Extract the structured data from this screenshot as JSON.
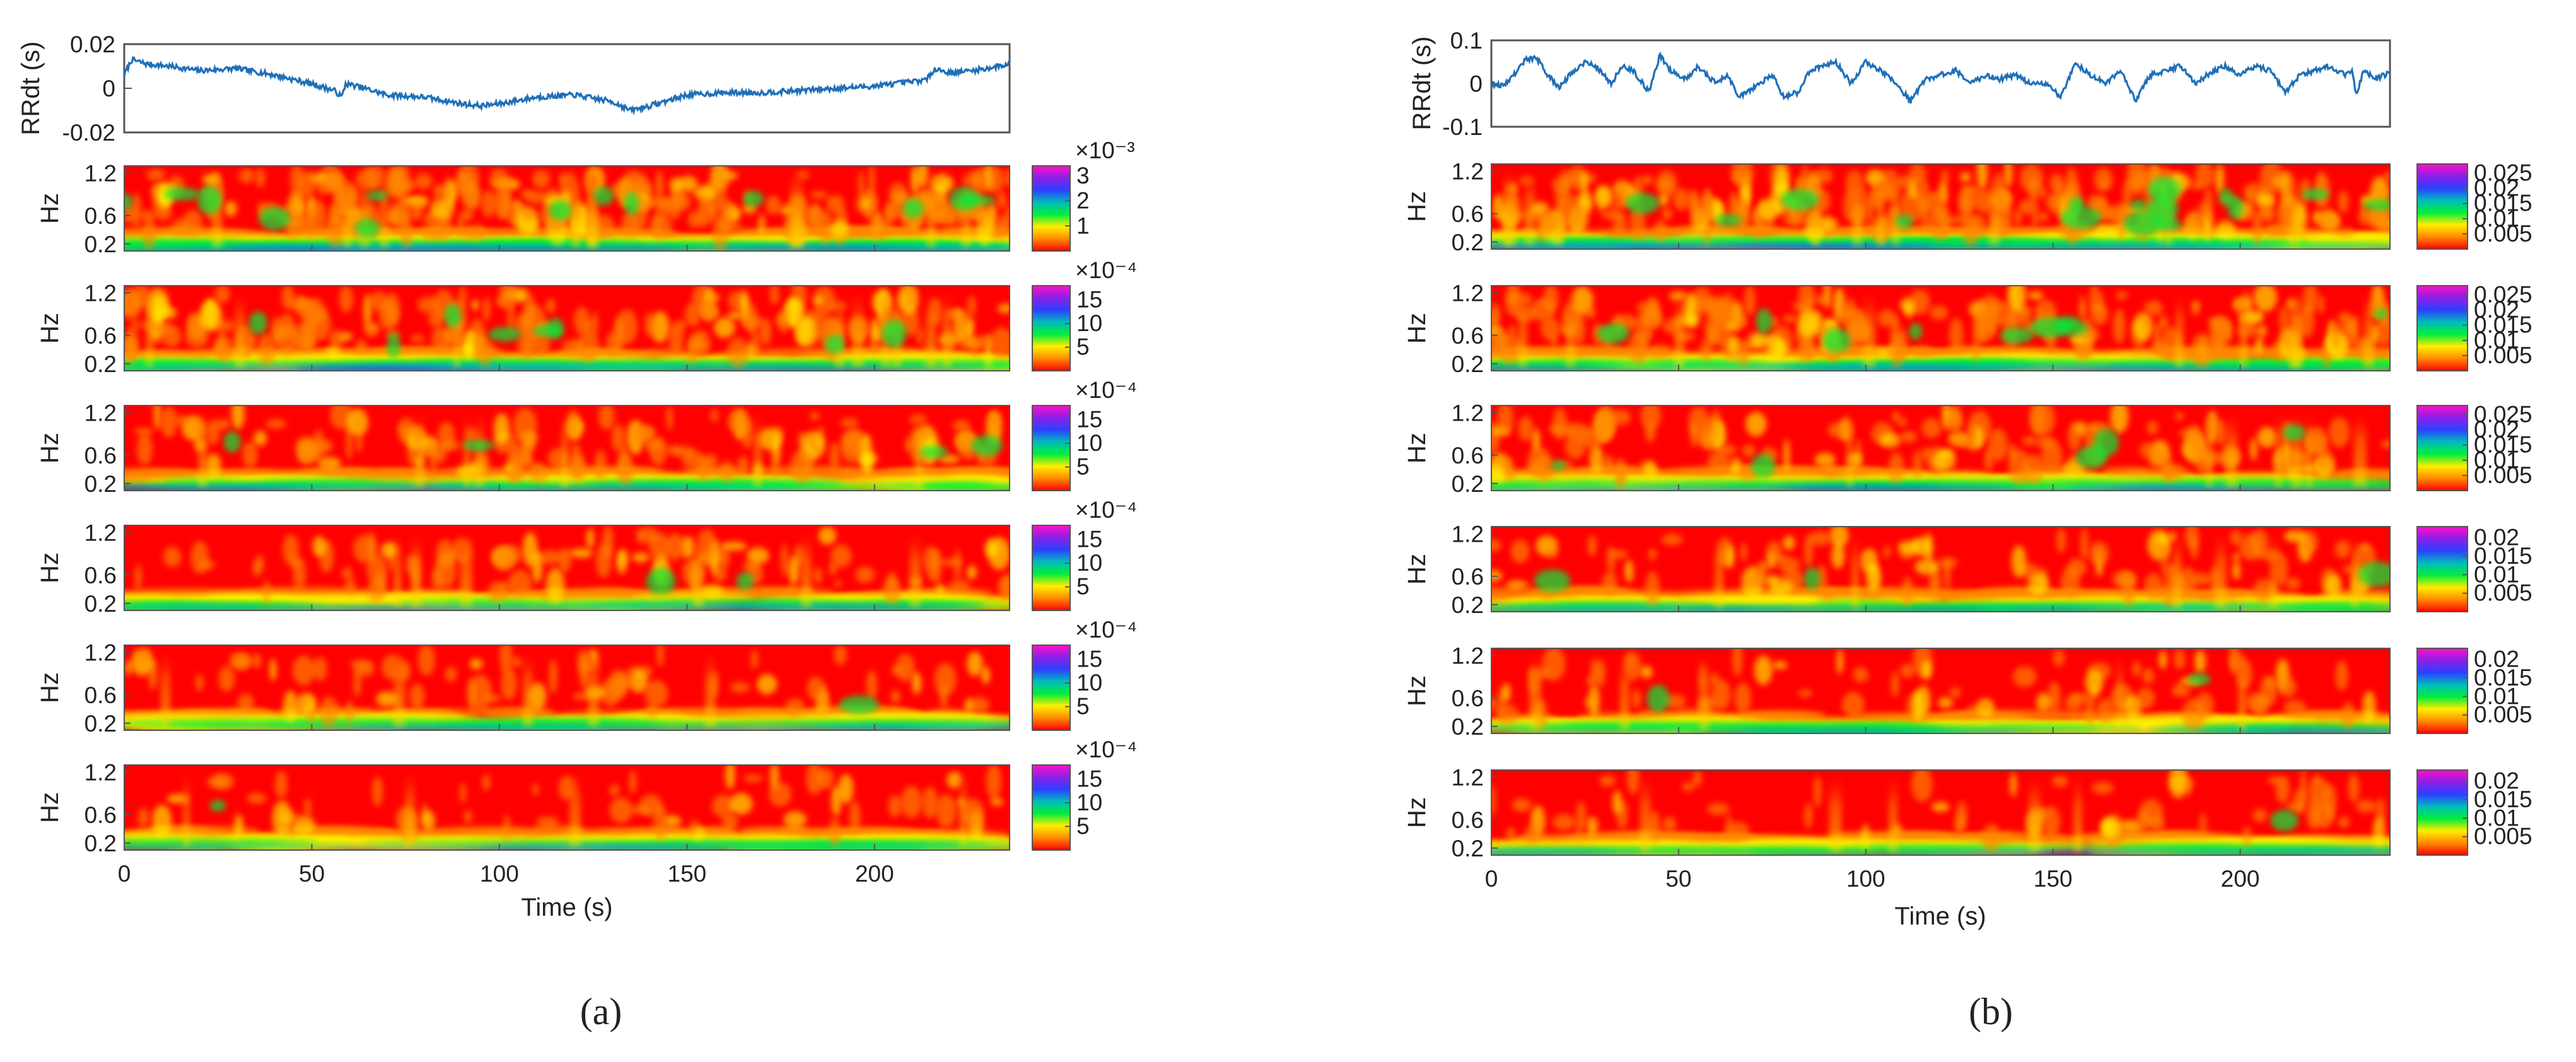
{
  "chart_data": [
    {
      "panel": "a",
      "type": "line",
      "ylabel": "RRdt (s)",
      "ylim": [
        -0.02,
        0.02
      ],
      "yticks": [
        "0.02",
        "0",
        "-0.02"
      ],
      "y_tick_values": [
        0.02,
        0,
        -0.02
      ],
      "xlim": [
        0,
        236
      ],
      "x_waypoints": [
        0,
        2,
        6,
        12,
        20,
        30,
        40,
        50,
        56,
        58,
        59,
        62,
        70,
        80,
        90,
        95,
        100,
        110,
        120,
        130,
        135,
        140,
        150,
        160,
        170,
        180,
        190,
        200,
        210,
        214,
        216,
        220,
        226,
        230,
        236
      ],
      "y_waypoints": [
        0.006,
        0.013,
        0.011,
        0.01,
        0.008,
        0.009,
        0.006,
        0.002,
        -0.001,
        -0.004,
        0.002,
        0.001,
        -0.003,
        -0.004,
        -0.007,
        -0.008,
        -0.007,
        -0.004,
        -0.003,
        -0.006,
        -0.01,
        -0.008,
        -0.003,
        -0.002,
        -0.002,
        -0.001,
        0.0,
        0.001,
        0.003,
        0.004,
        0.009,
        0.007,
        0.008,
        0.009,
        0.011
      ],
      "noise_amplitude": 0.0012,
      "line_color": "#1f6fb8",
      "show_x_ticks": false
    },
    {
      "panel": "b",
      "type": "line",
      "ylabel": "RRdt (s)",
      "ylim": [
        -0.1,
        0.1
      ],
      "yticks": [
        "0.1",
        "0",
        "-0.1"
      ],
      "y_tick_values": [
        0.1,
        0,
        -0.1
      ],
      "xlim": [
        0,
        240
      ],
      "x_waypoints": [
        0,
        3,
        6,
        9,
        12,
        15,
        18,
        22,
        25,
        28,
        32,
        35,
        38,
        42,
        45,
        48,
        52,
        55,
        60,
        63,
        66,
        70,
        75,
        78,
        82,
        85,
        88,
        92,
        96,
        100,
        104,
        108,
        112,
        116,
        120,
        124,
        128,
        132,
        136,
        140,
        144,
        148,
        152,
        156,
        160,
        164,
        168,
        172,
        176,
        180,
        184,
        188,
        192,
        196,
        200,
        204,
        208,
        212,
        216,
        220,
        224,
        228,
        230,
        231,
        233,
        236,
        240
      ],
      "y_waypoints": [
        0.0,
        -0.005,
        0.02,
        0.055,
        0.06,
        0.02,
        -0.01,
        0.03,
        0.05,
        0.04,
        0.0,
        0.04,
        0.03,
        -0.02,
        0.065,
        0.03,
        0.01,
        0.04,
        0.0,
        0.02,
        -0.03,
        -0.01,
        0.02,
        -0.03,
        -0.02,
        0.03,
        0.04,
        0.05,
        0.0,
        0.05,
        0.03,
        0.0,
        -0.04,
        0.01,
        0.02,
        0.03,
        0.0,
        0.02,
        0.01,
        0.02,
        0.0,
        0.0,
        -0.03,
        0.045,
        0.02,
        0.0,
        0.03,
        -0.04,
        0.02,
        0.03,
        0.04,
        0.0,
        0.025,
        0.04,
        0.02,
        0.04,
        0.03,
        -0.02,
        0.02,
        0.03,
        0.04,
        0.02,
        0.03,
        -0.03,
        0.03,
        0.01,
        0.025
      ],
      "noise_amplitude": 0.006,
      "line_color": "#1f6fb8",
      "show_x_ticks": false
    },
    {
      "panel": "a",
      "type": "heatmap",
      "rows": [
        {
          "ylabel": "Hz",
          "yticks": [
            "1.2",
            "0.6",
            "0.2"
          ],
          "y_tick_values": [
            1.2,
            0.6,
            0.2
          ],
          "colorbar_exponent": "×10⁻³",
          "colorbar_ticks": [
            "3",
            "2",
            "1"
          ],
          "colorbar_tick_values": [
            3,
            2,
            1
          ],
          "colorbar_max": 3.4,
          "activity": 0.85,
          "seed": 11
        },
        {
          "ylabel": "Hz",
          "yticks": [
            "1.2",
            "0.6",
            "0.2"
          ],
          "y_tick_values": [
            1.2,
            0.6,
            0.2
          ],
          "colorbar_exponent": "×10⁻⁴",
          "colorbar_ticks": [
            "15",
            "10",
            "5"
          ],
          "colorbar_tick_values": [
            15,
            10,
            5
          ],
          "colorbar_max": 18,
          "activity": 0.65,
          "seed": 12
        },
        {
          "ylabel": "Hz",
          "yticks": [
            "1.2",
            "0.6",
            "0.2"
          ],
          "y_tick_values": [
            1.2,
            0.6,
            0.2
          ],
          "colorbar_exponent": "×10⁻⁴",
          "colorbar_ticks": [
            "15",
            "10",
            "5"
          ],
          "colorbar_tick_values": [
            15,
            10,
            5
          ],
          "colorbar_max": 18,
          "activity": 0.45,
          "seed": 13
        },
        {
          "ylabel": "Hz",
          "yticks": [
            "1.2",
            "0.6",
            "0.2"
          ],
          "y_tick_values": [
            1.2,
            0.6,
            0.2
          ],
          "colorbar_exponent": "×10⁻⁴",
          "colorbar_ticks": [
            "15",
            "10",
            "5"
          ],
          "colorbar_tick_values": [
            15,
            10,
            5
          ],
          "colorbar_max": 18,
          "activity": 0.35,
          "seed": 14
        },
        {
          "ylabel": "Hz",
          "yticks": [
            "1.2",
            "0.6",
            "0.2"
          ],
          "y_tick_values": [
            1.2,
            0.6,
            0.2
          ],
          "colorbar_exponent": "×10⁻⁴",
          "colorbar_ticks": [
            "15",
            "10",
            "5"
          ],
          "colorbar_tick_values": [
            15,
            10,
            5
          ],
          "colorbar_max": 18,
          "activity": 0.28,
          "seed": 15
        },
        {
          "ylabel": "Hz",
          "yticks": [
            "1.2",
            "0.6",
            "0.2"
          ],
          "y_tick_values": [
            1.2,
            0.6,
            0.2
          ],
          "colorbar_exponent": "×10⁻⁴",
          "colorbar_ticks": [
            "15",
            "10",
            "5"
          ],
          "colorbar_tick_values": [
            15,
            10,
            5
          ],
          "colorbar_max": 18,
          "activity": 0.22,
          "seed": 16
        }
      ],
      "xlabel": "Time (s)",
      "xlim": [
        0,
        236
      ],
      "xticks": [
        "0",
        "50",
        "100",
        "150",
        "200"
      ],
      "x_tick_values": [
        0,
        50,
        100,
        150,
        200
      ],
      "ylim_hz": [
        0.1,
        1.3
      ]
    },
    {
      "panel": "b",
      "type": "heatmap",
      "rows": [
        {
          "ylabel": "Hz",
          "yticks": [
            "1.2",
            "0.6",
            "0.2"
          ],
          "y_tick_values": [
            1.2,
            0.6,
            0.2
          ],
          "colorbar_ticks": [
            "0.025",
            "0.02",
            "0.015",
            "0.01",
            "0.005"
          ],
          "colorbar_tick_values": [
            0.025,
            0.02,
            0.015,
            0.01,
            0.005
          ],
          "colorbar_max": 0.028,
          "activity": 0.9,
          "seed": 21
        },
        {
          "ylabel": "Hz",
          "yticks": [
            "1.2",
            "0.6",
            "0.2"
          ],
          "y_tick_values": [
            1.2,
            0.6,
            0.2
          ],
          "colorbar_ticks": [
            "0.025",
            "0.02",
            "0.015",
            "0.01",
            "0.005"
          ],
          "colorbar_tick_values": [
            0.025,
            0.02,
            0.015,
            0.01,
            0.005
          ],
          "colorbar_max": 0.028,
          "activity": 0.7,
          "seed": 22
        },
        {
          "ylabel": "Hz",
          "yticks": [
            "1.2",
            "0.6",
            "0.2"
          ],
          "y_tick_values": [
            1.2,
            0.6,
            0.2
          ],
          "colorbar_ticks": [
            "0.025",
            "0.02",
            "0.015",
            "0.01",
            "0.005"
          ],
          "colorbar_tick_values": [
            0.025,
            0.02,
            0.015,
            0.01,
            0.005
          ],
          "colorbar_max": 0.028,
          "activity": 0.5,
          "seed": 23
        },
        {
          "ylabel": "Hz",
          "yticks": [
            "1.2",
            "0.6",
            "0.2"
          ],
          "y_tick_values": [
            1.2,
            0.6,
            0.2
          ],
          "colorbar_ticks": [
            "0.02",
            "0.015",
            "0.01",
            "0.005"
          ],
          "colorbar_tick_values": [
            0.02,
            0.015,
            0.01,
            0.005
          ],
          "colorbar_max": 0.023,
          "activity": 0.38,
          "seed": 24
        },
        {
          "ylabel": "Hz",
          "yticks": [
            "1.2",
            "0.6",
            "0.2"
          ],
          "y_tick_values": [
            1.2,
            0.6,
            0.2
          ],
          "colorbar_ticks": [
            "0.02",
            "0.015",
            "0.01",
            "0.005"
          ],
          "colorbar_tick_values": [
            0.02,
            0.015,
            0.01,
            0.005
          ],
          "colorbar_max": 0.023,
          "activity": 0.3,
          "seed": 25
        },
        {
          "ylabel": "Hz",
          "yticks": [
            "1.2",
            "0.6",
            "0.2"
          ],
          "y_tick_values": [
            1.2,
            0.6,
            0.2
          ],
          "colorbar_ticks": [
            "0.02",
            "0.015",
            "0.01",
            "0.005"
          ],
          "colorbar_tick_values": [
            0.02,
            0.015,
            0.01,
            0.005
          ],
          "colorbar_max": 0.023,
          "activity": 0.25,
          "seed": 26
        }
      ],
      "xlabel": "Time (s)",
      "xlim": [
        0,
        240
      ],
      "xticks": [
        "0",
        "50",
        "100",
        "150",
        "200"
      ],
      "x_tick_values": [
        0,
        50,
        100,
        150,
        200
      ],
      "ylim_hz": [
        0.1,
        1.3
      ]
    }
  ],
  "subfigure_labels": {
    "a": "(a)",
    "b": "(b)"
  },
  "colormap": [
    "#ff0000",
    "#ff8a00",
    "#ffee00",
    "#00ee3a",
    "#00bcbc",
    "#2c40ff",
    "#8a20e8",
    "#ff10c8"
  ],
  "axis_color": "#555555"
}
